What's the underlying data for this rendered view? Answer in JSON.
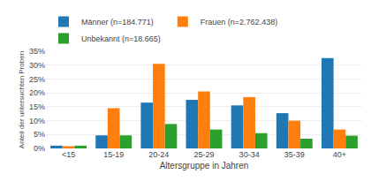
{
  "chart_data": {
    "type": "bar",
    "categories": [
      "<15",
      "15-19",
      "20-24",
      "25-29",
      "30-34",
      "35-39",
      "40+"
    ],
    "series": [
      {
        "name": "Männer (n=184.771)",
        "values": [
          1.0,
          4.7,
          16.5,
          17.5,
          15.5,
          12.7,
          32.5
        ]
      },
      {
        "name": "Frauen (n=2.762.438)",
        "values": [
          0.8,
          14.5,
          30.5,
          20.5,
          18.5,
          10.0,
          6.8
        ]
      },
      {
        "name": "Unbekannt (n=18.665)",
        "values": [
          1.0,
          4.7,
          8.8,
          6.8,
          5.5,
          3.5,
          4.6
        ]
      }
    ],
    "xlabel": "Altersgruppe in Jahren",
    "ylabel": "Anteil der untersuchten Proben",
    "ylim": [
      0,
      35
    ],
    "yticks": [
      {
        "value": 0,
        "label": "0%"
      },
      {
        "value": 5,
        "label": "5%"
      },
      {
        "value": 10,
        "label": "10%"
      },
      {
        "value": 15,
        "label": "15%"
      },
      {
        "value": 20,
        "label": "20%"
      },
      {
        "value": 25,
        "label": "25%"
      },
      {
        "value": 30,
        "label": "30%"
      },
      {
        "value": 35,
        "label": "35%"
      }
    ],
    "grid": true,
    "legend": "upper left"
  }
}
